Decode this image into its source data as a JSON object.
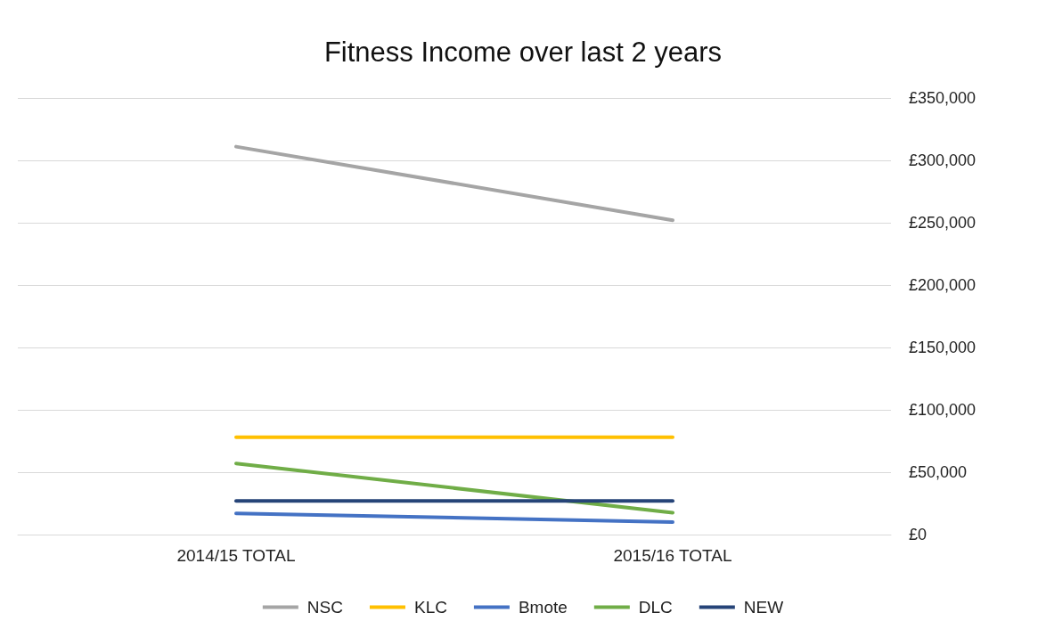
{
  "chart_data": {
    "type": "line",
    "title": "Fitness Income over last 2 years",
    "categories": [
      "2014/15 TOTAL",
      "2015/16 TOTAL"
    ],
    "series": [
      {
        "name": "NSC",
        "color": "#a5a5a5",
        "values": [
          311000,
          252000
        ]
      },
      {
        "name": "KLC",
        "color": "#ffc000",
        "values": [
          78000,
          78000
        ]
      },
      {
        "name": "Bmote",
        "color": "#4472c4",
        "values": [
          17000,
          10000
        ]
      },
      {
        "name": "DLC",
        "color": "#70ad47",
        "values": [
          57000,
          17500
        ]
      },
      {
        "name": "NEW",
        "color": "#264478",
        "values": [
          27000,
          27000
        ]
      }
    ],
    "ylim": [
      0,
      350000
    ],
    "yticks": [
      {
        "value": 0,
        "label": "£0"
      },
      {
        "value": 50000,
        "label": "£50,000"
      },
      {
        "value": 100000,
        "label": "£100,000"
      },
      {
        "value": 150000,
        "label": "£150,000"
      },
      {
        "value": 200000,
        "label": "£200,000"
      },
      {
        "value": 250000,
        "label": "£250,000"
      },
      {
        "value": 300000,
        "label": "£300,000"
      },
      {
        "value": 350000,
        "label": "£350,000"
      }
    ],
    "grid": "y",
    "legend": "bottom",
    "marker": "none",
    "line_style": "solid"
  }
}
